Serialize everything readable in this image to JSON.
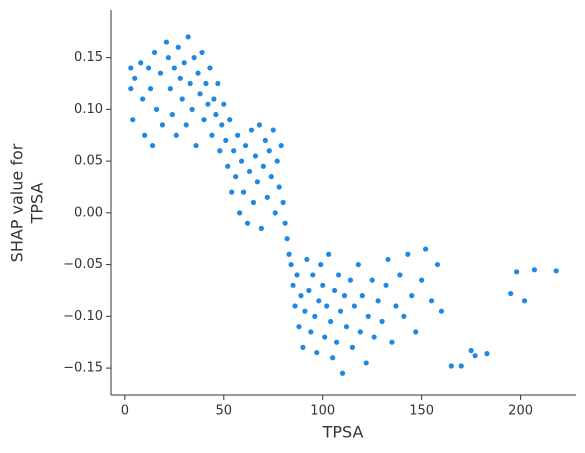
{
  "chart_data": {
    "type": "scatter",
    "x_label": "TPSA",
    "y_label_lines": [
      "SHAP value for",
      "TPSA"
    ],
    "color": "#1e88e5",
    "xlim": [
      -7,
      228
    ],
    "ylim": [
      -0.176,
      0.196
    ],
    "xticks": [
      0,
      50,
      100,
      150,
      200
    ],
    "yticks": [
      {
        "value": -0.15,
        "label": "−0.15"
      },
      {
        "value": -0.1,
        "label": "−0.10"
      },
      {
        "value": -0.05,
        "label": "−0.05"
      },
      {
        "value": 0,
        "label": "0.00"
      },
      0.05,
      {
        "value": 0.1,
        "label": "0.10"
      },
      0.15
    ],
    "x": [
      3,
      3,
      4,
      5,
      8,
      9,
      10,
      12,
      13,
      14,
      15,
      16,
      18,
      19,
      21,
      22,
      23,
      24,
      25,
      26,
      27,
      28,
      29,
      30,
      31,
      32,
      33,
      34,
      35,
      36,
      37,
      38,
      39,
      40,
      41,
      42,
      43,
      44,
      45,
      46,
      47,
      48,
      49,
      50,
      51,
      52,
      53,
      54,
      55,
      56,
      57,
      58,
      59,
      60,
      61,
      62,
      63,
      64,
      65,
      66,
      67,
      68,
      69,
      70,
      71,
      72,
      73,
      74,
      75,
      76,
      77,
      78,
      79,
      80,
      81,
      82,
      83,
      84,
      85,
      86,
      87,
      88,
      89,
      90,
      91,
      92,
      93,
      94,
      95,
      96,
      97,
      98,
      99,
      100,
      101,
      102,
      103,
      104,
      105,
      106,
      107,
      108,
      109,
      110,
      111,
      112,
      114,
      115,
      116,
      118,
      119,
      120,
      122,
      123,
      125,
      126,
      128,
      130,
      132,
      133,
      135,
      137,
      139,
      141,
      143,
      145,
      147,
      150,
      152,
      155,
      158,
      160,
      165,
      170,
      175,
      177,
      183,
      195,
      198,
      202,
      207,
      218
    ],
    "values": [
      0.14,
      0.12,
      0.09,
      0.13,
      0.145,
      0.11,
      0.075,
      0.14,
      0.12,
      0.065,
      0.155,
      0.1,
      0.135,
      0.085,
      0.165,
      0.15,
      0.12,
      0.095,
      0.14,
      0.075,
      0.16,
      0.13,
      0.11,
      0.145,
      0.085,
      0.17,
      0.125,
      0.1,
      0.15,
      0.065,
      0.135,
      0.115,
      0.155,
      0.09,
      0.125,
      0.105,
      0.14,
      0.075,
      0.11,
      0.095,
      0.125,
      0.06,
      0.085,
      0.105,
      0.07,
      0.045,
      0.09,
      0.02,
      0.06,
      0.035,
      0.075,
      0.0,
      0.05,
      0.02,
      0.065,
      -0.01,
      0.04,
      0.08,
      0.01,
      0.055,
      0.03,
      0.085,
      -0.015,
      0.045,
      0.07,
      0.015,
      0.06,
      0.035,
      0.08,
      0.0,
      0.05,
      0.025,
      0.065,
      0.01,
      -0.01,
      -0.025,
      -0.04,
      -0.05,
      -0.07,
      -0.09,
      -0.06,
      -0.11,
      -0.08,
      -0.13,
      -0.095,
      -0.045,
      -0.075,
      -0.115,
      -0.06,
      -0.1,
      -0.135,
      -0.085,
      -0.05,
      -0.07,
      -0.12,
      -0.09,
      -0.04,
      -0.105,
      -0.14,
      -0.075,
      -0.125,
      -0.06,
      -0.095,
      -0.155,
      -0.08,
      -0.11,
      -0.065,
      -0.13,
      -0.09,
      -0.05,
      -0.115,
      -0.08,
      -0.145,
      -0.1,
      -0.065,
      -0.12,
      -0.085,
      -0.105,
      -0.07,
      -0.045,
      -0.125,
      -0.09,
      -0.06,
      -0.1,
      -0.04,
      -0.08,
      -0.115,
      -0.065,
      -0.035,
      -0.085,
      -0.05,
      -0.095,
      -0.148,
      -0.148,
      -0.133,
      -0.138,
      -0.136,
      -0.078,
      -0.057,
      -0.085,
      -0.055,
      -0.056
    ]
  }
}
